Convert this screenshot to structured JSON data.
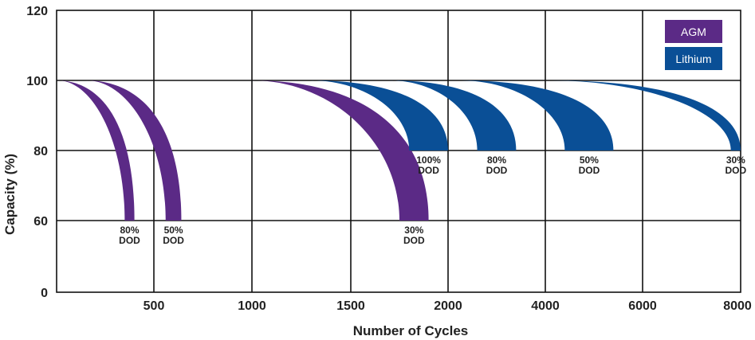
{
  "chart_data": {
    "type": "area",
    "xlabel": "Number of Cycles",
    "ylabel": "Capacity (%)",
    "x_tick_labels": [
      "500",
      "1000",
      "1500",
      "2000",
      "4000",
      "6000",
      "8000"
    ],
    "y_tick_labels": [
      "0",
      "60",
      "80",
      "100",
      "120"
    ],
    "grid": true,
    "legend_position": "top-right",
    "legend": [
      {
        "name": "AGM",
        "color": "#5b2a86"
      },
      {
        "name": "Lithium",
        "color": "#0a4f96"
      }
    ],
    "series": [
      {
        "chemistry": "AGM",
        "label_top": "80%",
        "label_bottom": "DOD",
        "start_capacity": 100,
        "end_capacity": 60,
        "end_cycles_range": [
          350,
          400
        ]
      },
      {
        "chemistry": "AGM",
        "label_top": "50%",
        "label_bottom": "DOD",
        "start_capacity": 100,
        "end_capacity": 60,
        "end_cycles_range": [
          560,
          640
        ]
      },
      {
        "chemistry": "AGM",
        "label_top": "30%",
        "label_bottom": "DOD",
        "start_capacity": 100,
        "end_capacity": 60,
        "end_cycles_range": [
          1750,
          1900
        ]
      },
      {
        "chemistry": "Lithium",
        "label_top": "100%",
        "label_bottom": "DOD",
        "start_capacity": 100,
        "end_capacity": 80,
        "end_cycles_range": [
          1800,
          2000
        ]
      },
      {
        "chemistry": "Lithium",
        "label_top": "80%",
        "label_bottom": "DOD",
        "start_capacity": 100,
        "end_capacity": 80,
        "end_cycles_range": [
          2600,
          3400
        ]
      },
      {
        "chemistry": "Lithium",
        "label_top": "50%",
        "label_bottom": "DOD",
        "start_capacity": 100,
        "end_capacity": 80,
        "end_cycles_range": [
          4400,
          5400
        ]
      },
      {
        "chemistry": "Lithium",
        "label_top": "30%",
        "label_bottom": "DOD",
        "start_capacity": 100,
        "end_capacity": 80,
        "end_cycles_range": [
          7800,
          8000
        ]
      }
    ]
  }
}
